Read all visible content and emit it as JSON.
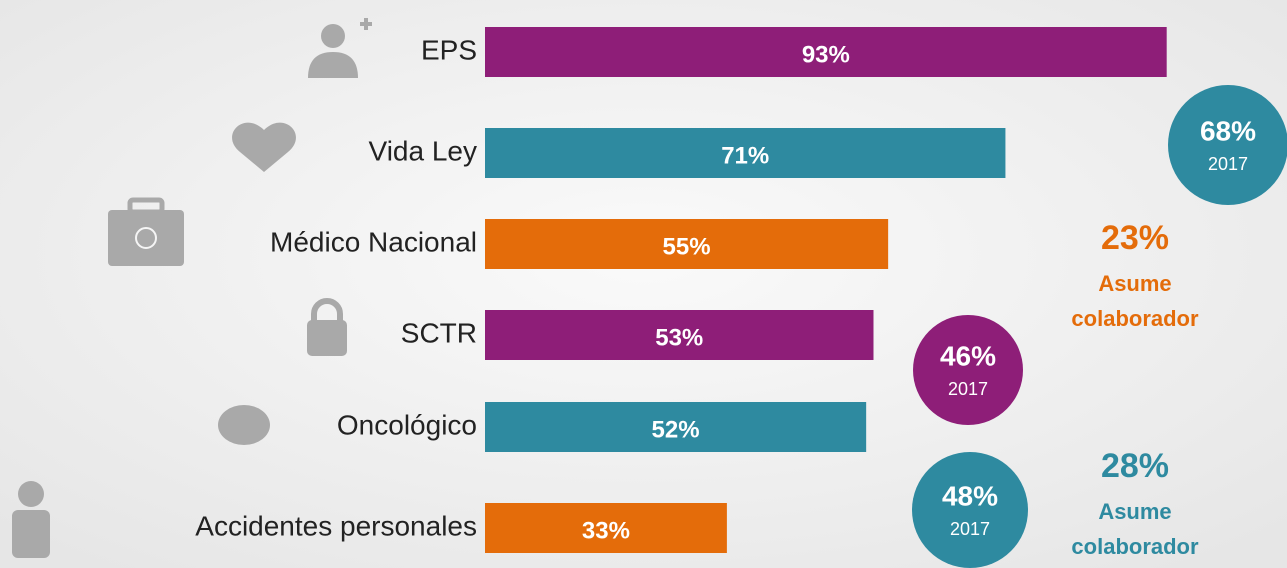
{
  "chart_data": {
    "type": "hbar",
    "categories": [
      "EPS",
      "Vida Ley",
      "Médico Nacional",
      "SCTR",
      "Oncológico",
      "Accidentes personales"
    ],
    "values": [
      93,
      71,
      55,
      53,
      52,
      33
    ],
    "value_labels": [
      "93%",
      "71%",
      "55%",
      "53%",
      "52%",
      "33%"
    ],
    "colors": [
      "#8e1e78",
      "#2e8aa0",
      "#e46c0a",
      "#8e1e78",
      "#2e8aa0",
      "#e46c0a"
    ],
    "xlim": [
      0,
      100
    ],
    "annotations": [
      {
        "label": "68%",
        "note": "2017",
        "color": "#2e8aa0",
        "shape": "circle"
      },
      {
        "label": "23%",
        "note": [
          "Asume",
          "colaborador"
        ],
        "color": "#e46c0a",
        "shape": "text"
      },
      {
        "label": "46%",
        "note": "2017",
        "color": "#8e1e78",
        "shape": "circle"
      },
      {
        "label": "48%",
        "note": "2017",
        "color": "#2e8aa0",
        "shape": "circle"
      },
      {
        "label": "28%",
        "note": [
          "Asume",
          "colaborador"
        ],
        "color": "#2e8aa0",
        "shape": "text"
      }
    ]
  }
}
